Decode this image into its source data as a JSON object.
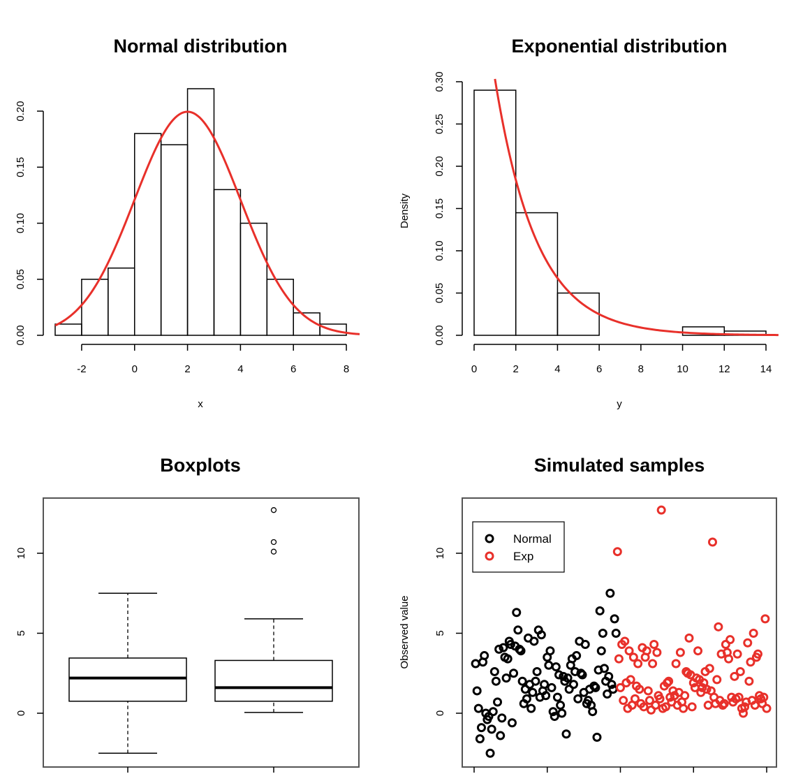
{
  "colors": {
    "red": "#e8302a",
    "black": "#000000"
  },
  "chart_data": [
    {
      "type": "bar",
      "title": "Normal distribution",
      "xlabel": "x",
      "ylabel": "",
      "xlim": [
        -3,
        8.5
      ],
      "ylim": [
        0,
        0.22
      ],
      "xticks": [
        -2,
        0,
        2,
        4,
        6,
        8
      ],
      "yticks": [
        0.0,
        0.05,
        0.1,
        0.15,
        0.2
      ],
      "xtick_labels": [
        "-2",
        "0",
        "2",
        "4",
        "6",
        "8"
      ],
      "ytick_labels": [
        "0.00",
        "0.05",
        "0.10",
        "0.15",
        "0.20"
      ],
      "bins": [
        [
          -3,
          -2
        ],
        [
          -2,
          -1
        ],
        [
          -1,
          0
        ],
        [
          0,
          1
        ],
        [
          1,
          2
        ],
        [
          2,
          3
        ],
        [
          3,
          4
        ],
        [
          4,
          5
        ],
        [
          5,
          6
        ],
        [
          6,
          7
        ],
        [
          7,
          8
        ]
      ],
      "values": [
        0.01,
        0.05,
        0.06,
        0.18,
        0.17,
        0.22,
        0.13,
        0.1,
        0.05,
        0.02,
        0.01
      ],
      "curve": {
        "kind": "normal",
        "mean": 2,
        "sd": 2,
        "color": "#e8302a",
        "x_range": [
          -3,
          8.5
        ]
      }
    },
    {
      "type": "bar",
      "title": "Exponential distribution",
      "xlabel": "y",
      "ylabel": "Density",
      "xlim": [
        0,
        14
      ],
      "ylim": [
        0,
        0.3
      ],
      "xticks": [
        0,
        2,
        4,
        6,
        8,
        10,
        12,
        14
      ],
      "yticks": [
        0.0,
        0.05,
        0.1,
        0.15,
        0.2,
        0.25,
        0.3
      ],
      "xtick_labels": [
        "0",
        "2",
        "4",
        "6",
        "8",
        "10",
        "12",
        "14"
      ],
      "ytick_labels": [
        "0.00",
        "0.05",
        "0.10",
        "0.15",
        "0.20",
        "0.25",
        "0.30"
      ],
      "bins": [
        [
          0,
          2
        ],
        [
          2,
          4
        ],
        [
          4,
          6
        ],
        [
          6,
          8
        ],
        [
          8,
          10
        ],
        [
          10,
          12
        ],
        [
          12,
          14
        ]
      ],
      "values": [
        0.29,
        0.145,
        0.05,
        0.0,
        0.0,
        0.01,
        0.005
      ],
      "curve": {
        "kind": "exponential",
        "rate": 0.5,
        "color": "#e8302a",
        "x_range": [
          1.0,
          14.6
        ]
      }
    },
    {
      "type": "boxplot",
      "title": "Boxplots",
      "ylim": [
        -3,
        13
      ],
      "yticks": [
        0,
        5,
        10
      ],
      "ytick_labels": [
        "0",
        "5",
        "10"
      ],
      "boxes": [
        {
          "whisker_low": -2.5,
          "q1": 0.75,
          "median": 2.2,
          "q3": 3.45,
          "whisker_high": 7.5,
          "outliers": []
        },
        {
          "whisker_low": 0.05,
          "q1": 0.75,
          "median": 1.6,
          "q3": 3.3,
          "whisker_high": 5.9,
          "outliers": [
            10.1,
            10.7,
            12.7
          ]
        }
      ]
    },
    {
      "type": "scatter",
      "title": "Simulated samples",
      "ylabel": "Observed value",
      "xlim": [
        -2,
        208
      ],
      "ylim": [
        -3,
        13
      ],
      "yticks": [
        0,
        5,
        10
      ],
      "ytick_labels": [
        "0",
        "5",
        "10"
      ],
      "legend": {
        "position": "top-left",
        "entries": [
          {
            "label": "Normal",
            "color": "#000000"
          },
          {
            "label": "Exp",
            "color": "#e8302a"
          }
        ]
      },
      "series": [
        {
          "name": "Normal",
          "color": "#000000",
          "index_start": 1,
          "values": [
            3.1,
            1.4,
            0.3,
            -1.6,
            -0.9,
            3.2,
            3.6,
            0.0,
            -0.4,
            -0.2,
            -2.5,
            -1.0,
            0.1,
            2.6,
            2.0,
            0.7,
            4.0,
            -1.4,
            -0.3,
            4.1,
            3.5,
            2.2,
            3.4,
            4.5,
            4.3,
            -0.6,
            2.5,
            4.2,
            6.3,
            5.2,
            4.0,
            3.9,
            2.0,
            0.6,
            1.5,
            0.9,
            4.7,
            1.8,
            0.3,
            1.3,
            4.5,
            2.0,
            2.6,
            5.2,
            1.0,
            4.9,
            1.4,
            1.8,
            1.1,
            3.5,
            3.0,
            3.9,
            1.6,
            0.1,
            -0.2,
            2.9,
            1.0,
            2.4,
            0.5,
            0.0,
            2.3,
            2.0,
            -1.3,
            2.2,
            1.5,
            3.0,
            3.4,
            1.8,
            2.6,
            3.6,
            0.9,
            4.5,
            2.5,
            2.4,
            1.3,
            4.3,
            0.6,
            0.8,
            1.5,
            0.5,
            0.1,
            1.7,
            1.6,
            -1.5,
            2.7,
            6.4,
            3.9,
            5.0,
            2.8,
            2.0,
            1.2,
            2.3,
            7.5,
            1.8,
            1.5,
            5.9,
            5.0
          ]
        },
        {
          "name": "Exp",
          "color": "#e8302a",
          "index_start": 98,
          "values": [
            10.1,
            3.4,
            1.6,
            4.3,
            0.8,
            4.5,
            1.9,
            0.3,
            3.9,
            2.1,
            0.5,
            3.5,
            0.9,
            1.7,
            3.1,
            1.5,
            0.6,
            4.1,
            0.4,
            3.5,
            3.9,
            1.4,
            0.8,
            0.2,
            3.1,
            4.3,
            0.5,
            3.8,
            1.1,
            0.9,
            12.7,
            0.3,
            1.7,
            0.4,
            1.9,
            2.0,
            1.0,
            0.7,
            1.4,
            1.1,
            3.1,
            0.5,
            1.3,
            3.8,
            0.7,
            0.3,
            1.1,
            2.6,
            2.5,
            4.7,
            2.4,
            0.4,
            1.9,
            1.6,
            2.2,
            3.9,
            2.1,
            1.3,
            1.6,
            1.9,
            2.6,
            1.5,
            0.5,
            2.8,
            1.4,
            10.7,
            1.0,
            0.6,
            2.1,
            5.4,
            0.8,
            3.7,
            0.5,
            0.6,
            4.3,
            3.8,
            3.4,
            4.6,
            1.0,
            0.7,
            2.3,
            0.9,
            3.7,
            1.0,
            2.6,
            0.3,
            0.0,
            0.4,
            0.7,
            4.4,
            2.0,
            3.2,
            0.8,
            5.0,
            0.5,
            3.5,
            3.7,
            1.1,
            0.9,
            0.6,
            1.0,
            5.9,
            0.3
          ]
        }
      ]
    }
  ]
}
